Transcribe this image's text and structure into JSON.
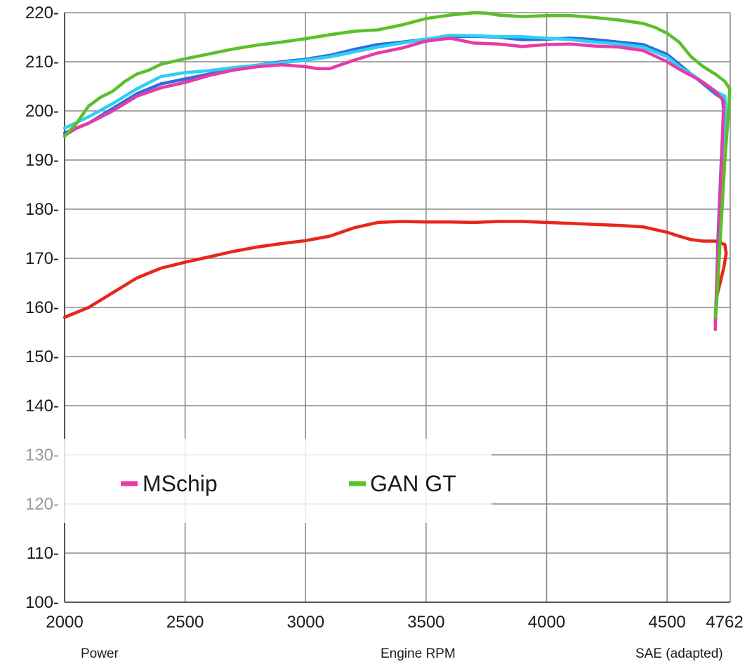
{
  "chart_data": {
    "type": "line",
    "footer": {
      "left": "Power",
      "center": "Engine RPM",
      "right": "SAE (adapted)"
    },
    "x_ticks": [
      {
        "value": 2000,
        "label": "2000"
      },
      {
        "value": 2500,
        "label": "2500"
      },
      {
        "value": 3000,
        "label": "3000"
      },
      {
        "value": 3500,
        "label": "3500"
      },
      {
        "value": 4000,
        "label": "4000"
      },
      {
        "value": 4500,
        "label": "4500"
      },
      {
        "value": 4762,
        "label": "4762"
      }
    ],
    "y_ticks": [
      {
        "value": 220,
        "label": "220-"
      },
      {
        "value": 210,
        "label": "210-"
      },
      {
        "value": 200,
        "label": "200-"
      },
      {
        "value": 190,
        "label": "190-"
      },
      {
        "value": 180,
        "label": "180-"
      },
      {
        "value": 170,
        "label": "170-"
      },
      {
        "value": 160,
        "label": "160-"
      },
      {
        "value": 150,
        "label": "150-"
      },
      {
        "value": 140,
        "label": "140-"
      },
      {
        "value": 130,
        "label": "130-"
      },
      {
        "value": 120,
        "label": "120-"
      },
      {
        "value": 110,
        "label": "110-"
      },
      {
        "value": 100,
        "label": "100-"
      }
    ],
    "xlim": [
      2000,
      4762
    ],
    "ylim": [
      100,
      220
    ],
    "grid": true,
    "legend": [
      {
        "label": "MSchip",
        "color": "#e83aa8"
      },
      {
        "label": "GAN GT",
        "color": "#5cbf2a"
      }
    ],
    "series": [
      {
        "color": "#e8261c",
        "points": [
          [
            2000,
            158
          ],
          [
            2050,
            159
          ],
          [
            2100,
            160
          ],
          [
            2150,
            161.5
          ],
          [
            2200,
            163
          ],
          [
            2250,
            164.5
          ],
          [
            2300,
            166
          ],
          [
            2350,
            167
          ],
          [
            2400,
            168
          ],
          [
            2450,
            168.6
          ],
          [
            2500,
            169.2
          ],
          [
            2600,
            170.3
          ],
          [
            2700,
            171.4
          ],
          [
            2800,
            172.3
          ],
          [
            2900,
            173
          ],
          [
            3000,
            173.6
          ],
          [
            3100,
            174.5
          ],
          [
            3200,
            176.2
          ],
          [
            3300,
            177.3
          ],
          [
            3400,
            177.5
          ],
          [
            3500,
            177.4
          ],
          [
            3600,
            177.4
          ],
          [
            3700,
            177.3
          ],
          [
            3800,
            177.5
          ],
          [
            3900,
            177.5
          ],
          [
            4000,
            177.3
          ],
          [
            4100,
            177.1
          ],
          [
            4200,
            176.9
          ],
          [
            4300,
            176.7
          ],
          [
            4400,
            176.4
          ],
          [
            4500,
            175.3
          ],
          [
            4550,
            174.5
          ],
          [
            4600,
            173.8
          ],
          [
            4650,
            173.5
          ],
          [
            4700,
            173.5
          ],
          [
            4740,
            172.8
          ],
          [
            4745,
            171
          ],
          [
            4735,
            168
          ],
          [
            4720,
            165
          ],
          [
            4705,
            162
          ],
          [
            4700,
            158
          ]
        ]
      },
      {
        "color": "#2f6de0",
        "points": [
          [
            2000,
            195.5
          ],
          [
            2100,
            197.5
          ],
          [
            2200,
            200.5
          ],
          [
            2300,
            203.5
          ],
          [
            2400,
            205.5
          ],
          [
            2500,
            206.5
          ],
          [
            2600,
            207.5
          ],
          [
            2700,
            208.5
          ],
          [
            2800,
            209.3
          ],
          [
            2900,
            210
          ],
          [
            3000,
            210.5
          ],
          [
            3100,
            211.3
          ],
          [
            3200,
            212.5
          ],
          [
            3300,
            213.5
          ],
          [
            3400,
            214
          ],
          [
            3500,
            214.6
          ],
          [
            3600,
            215.1
          ],
          [
            3700,
            215.2
          ],
          [
            3800,
            215
          ],
          [
            3900,
            214.5
          ],
          [
            4000,
            214.6
          ],
          [
            4100,
            214.8
          ],
          [
            4200,
            214.5
          ],
          [
            4300,
            214
          ],
          [
            4400,
            213.5
          ],
          [
            4500,
            211.5
          ],
          [
            4550,
            209.5
          ],
          [
            4600,
            207.5
          ],
          [
            4650,
            205.5
          ],
          [
            4700,
            203.5
          ],
          [
            4730,
            202.5
          ],
          [
            4735,
            200
          ],
          [
            4725,
            190
          ],
          [
            4712,
            175
          ],
          [
            4703,
            160
          ],
          [
            4700,
            157
          ]
        ]
      },
      {
        "color": "#2fd0f0",
        "points": [
          [
            2000,
            196.5
          ],
          [
            2100,
            198.8
          ],
          [
            2200,
            201.5
          ],
          [
            2300,
            204.5
          ],
          [
            2400,
            207
          ],
          [
            2500,
            207.8
          ],
          [
            2600,
            208.2
          ],
          [
            2700,
            208.8
          ],
          [
            2800,
            209.3
          ],
          [
            2900,
            209.8
          ],
          [
            3000,
            210.3
          ],
          [
            3100,
            211
          ],
          [
            3200,
            212
          ],
          [
            3300,
            213
          ],
          [
            3400,
            213.8
          ],
          [
            3500,
            214.6
          ],
          [
            3600,
            215.4
          ],
          [
            3700,
            215.3
          ],
          [
            3800,
            215.1
          ],
          [
            3900,
            215.1
          ],
          [
            4000,
            214.8
          ],
          [
            4100,
            214.5
          ],
          [
            4200,
            214
          ],
          [
            4300,
            213.6
          ],
          [
            4400,
            213
          ],
          [
            4500,
            211
          ],
          [
            4550,
            209
          ],
          [
            4600,
            207.5
          ],
          [
            4650,
            205.8
          ],
          [
            4700,
            204
          ],
          [
            4740,
            203
          ],
          [
            4742,
            200
          ],
          [
            4735,
            190
          ],
          [
            4720,
            175
          ],
          [
            4705,
            160
          ],
          [
            4700,
            158
          ]
        ]
      },
      {
        "color": "#e83aa8",
        "points": [
          [
            2000,
            195
          ],
          [
            2050,
            196.5
          ],
          [
            2100,
            197.5
          ],
          [
            2200,
            200
          ],
          [
            2300,
            203
          ],
          [
            2400,
            204.7
          ],
          [
            2500,
            205.8
          ],
          [
            2600,
            207.2
          ],
          [
            2700,
            208.3
          ],
          [
            2800,
            209
          ],
          [
            2900,
            209.4
          ],
          [
            3000,
            209
          ],
          [
            3050,
            208.6
          ],
          [
            3100,
            208.6
          ],
          [
            3200,
            210.3
          ],
          [
            3300,
            211.8
          ],
          [
            3400,
            212.8
          ],
          [
            3500,
            214.2
          ],
          [
            3600,
            214.8
          ],
          [
            3700,
            213.8
          ],
          [
            3800,
            213.6
          ],
          [
            3900,
            213.1
          ],
          [
            4000,
            213.5
          ],
          [
            4100,
            213.6
          ],
          [
            4200,
            213.2
          ],
          [
            4300,
            213
          ],
          [
            4400,
            212.3
          ],
          [
            4500,
            210
          ],
          [
            4550,
            208.5
          ],
          [
            4600,
            207.2
          ],
          [
            4650,
            205.8
          ],
          [
            4700,
            204
          ],
          [
            4735,
            202
          ],
          [
            4730,
            195
          ],
          [
            4718,
            180
          ],
          [
            4706,
            165
          ],
          [
            4700,
            155.5
          ]
        ]
      },
      {
        "color": "#5cbf2a",
        "points": [
          [
            2000,
            194.8
          ],
          [
            2050,
            197.5
          ],
          [
            2100,
            201
          ],
          [
            2150,
            202.8
          ],
          [
            2200,
            204
          ],
          [
            2250,
            206
          ],
          [
            2300,
            207.5
          ],
          [
            2350,
            208.3
          ],
          [
            2400,
            209.5
          ],
          [
            2500,
            210.6
          ],
          [
            2600,
            211.6
          ],
          [
            2700,
            212.6
          ],
          [
            2800,
            213.4
          ],
          [
            2900,
            214
          ],
          [
            3000,
            214.7
          ],
          [
            3100,
            215.5
          ],
          [
            3200,
            216.2
          ],
          [
            3300,
            216.5
          ],
          [
            3400,
            217.5
          ],
          [
            3500,
            218.8
          ],
          [
            3600,
            219.5
          ],
          [
            3700,
            220
          ],
          [
            3750,
            219.9
          ],
          [
            3800,
            219.5
          ],
          [
            3900,
            219.2
          ],
          [
            4000,
            219.4
          ],
          [
            4100,
            219.4
          ],
          [
            4200,
            219
          ],
          [
            4300,
            218.5
          ],
          [
            4400,
            217.8
          ],
          [
            4450,
            217
          ],
          [
            4500,
            215.8
          ],
          [
            4550,
            214
          ],
          [
            4600,
            211
          ],
          [
            4650,
            209
          ],
          [
            4700,
            207.5
          ],
          [
            4740,
            206
          ],
          [
            4760,
            204.5
          ],
          [
            4755,
            200
          ],
          [
            4740,
            190
          ],
          [
            4722,
            175
          ],
          [
            4708,
            163
          ],
          [
            4700,
            158
          ]
        ]
      }
    ]
  }
}
